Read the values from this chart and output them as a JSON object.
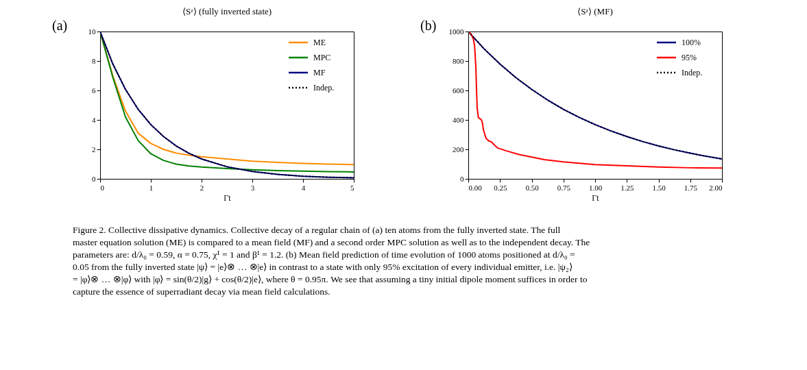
{
  "chart_data": [
    {
      "type": "line",
      "title": "⟨Sᶻ⟩ (fully inverted state)",
      "xlabel": "Γt",
      "xlim": [
        0,
        5
      ],
      "ylim": [
        0,
        10
      ],
      "xticks": [
        0,
        1,
        2,
        3,
        4,
        5
      ],
      "yticks": [
        0,
        2,
        4,
        6,
        8,
        10
      ],
      "grid": false,
      "legend": "top right",
      "line_style": "solid",
      "marker": "none",
      "annotations": [
        "(a)",
        "Figure 2. Collective dissipative dynamics. Collective decay of a regular chain of (a) ten atoms from the fully inverted state. The full master equation solution (ME) is compared to a mean field (MF) and a second order MPC solution as well as to the independent decay. The parameters are: d/λ₀ = 0.59, α = 0.75, χ¹ = 1 and β¹ = 1.2. (b) Mean field prediction of time evolution of 1000 atoms positioned at d/λ₀ = 0.05 from the fully inverted state |ψ⟩ = |e⟩⊗ … ⊗|e⟩ in contrast to a state with only 95% excitation of every individual emitter, i.e. |ψ₂⟩ = |φ⟩⊗ … ⊗|φ⟩ with |φ⟩ = sin(θ/2)|g⟩ + cos(θ/2)|e⟩, where θ = 0.95π. We see that assuming a tiny initial dipole moment suffices in order to capture the essence of superradiant decay via mean field calculations."
      ],
      "x": [
        0,
        0.25,
        0.5,
        0.75,
        1,
        1.25,
        1.5,
        1.75,
        2,
        2.5,
        3,
        3.5,
        4,
        4.5,
        5
      ],
      "series": [
        {
          "name": "ME",
          "color": "#ff8c00",
          "values": [
            10,
            7.0,
            4.6,
            3.1,
            2.4,
            2.0,
            1.75,
            1.6,
            1.5,
            1.35,
            1.2,
            1.12,
            1.05,
            1.0,
            0.97
          ]
        },
        {
          "name": "MPC",
          "color": "#008000",
          "values": [
            10,
            6.9,
            4.2,
            2.6,
            1.7,
            1.25,
            1.0,
            0.87,
            0.8,
            0.7,
            0.62,
            0.56,
            0.52,
            0.49,
            0.47
          ]
        },
        {
          "name": "MF",
          "color": "#000080",
          "values": [
            10,
            7.8,
            6.07,
            4.72,
            3.68,
            2.87,
            2.23,
            1.74,
            1.35,
            0.82,
            0.5,
            0.3,
            0.18,
            0.11,
            0.07
          ]
        },
        {
          "name": "Indep.",
          "color": "#000000",
          "line_style": "dotted",
          "values": [
            10,
            7.8,
            6.07,
            4.72,
            3.68,
            2.87,
            2.23,
            1.74,
            1.35,
            0.82,
            0.5,
            0.3,
            0.18,
            0.11,
            0.07
          ]
        }
      ]
    },
    {
      "type": "line",
      "title": "⟨Sᶻ⟩ (MF)",
      "xlabel": "Γt",
      "xlim": [
        0,
        2
      ],
      "ylim": [
        0,
        1000
      ],
      "xticks": [
        {
          "value": 0,
          "label": "0.00"
        },
        {
          "value": 0.25,
          "label": "0.25"
        },
        {
          "value": 0.5,
          "label": "0.50"
        },
        {
          "value": 0.75,
          "label": "0.75"
        },
        {
          "value": 1,
          "label": "1.00"
        },
        {
          "value": 1.25,
          "label": "1.25"
        },
        {
          "value": 1.5,
          "label": "1.50"
        },
        {
          "value": 1.75,
          "label": "1.75"
        },
        {
          "value": 2,
          "label": "2.00"
        }
      ],
      "yticks": [
        0,
        200,
        400,
        600,
        800,
        {
          "value": 1000,
          "label": "1000"
        }
      ],
      "grid": false,
      "legend": "top right",
      "line_style": "solid",
      "marker": "none",
      "annotations": [
        "(b)"
      ],
      "series": [
        {
          "name": "100%",
          "color": "#000080",
          "x": [
            0,
            0.125,
            0.25,
            0.375,
            0.5,
            0.625,
            0.75,
            0.875,
            1,
            1.125,
            1.25,
            1.375,
            1.5,
            1.625,
            1.75,
            1.875,
            2
          ],
          "values": [
            1000,
            882,
            779,
            687,
            607,
            535,
            472,
            417,
            368,
            325,
            287,
            253,
            223,
            197,
            174,
            153,
            135
          ]
        },
        {
          "name": "95%",
          "color": "#ff0000",
          "x": [
            0,
            0.02,
            0.04,
            0.05,
            0.06,
            0.065,
            0.07,
            0.08,
            0.09,
            0.1,
            0.11,
            0.12,
            0.14,
            0.16,
            0.18,
            0.2,
            0.23,
            0.3,
            0.4,
            0.5,
            0.6,
            0.75,
            1.0,
            1.25,
            1.5,
            1.75,
            2
          ],
          "values": [
            1000,
            985,
            950,
            900,
            750,
            600,
            480,
            415,
            408,
            405,
            385,
            330,
            275,
            258,
            252,
            235,
            210,
            190,
            165,
            148,
            130,
            115,
            97,
            88,
            80,
            75,
            73
          ]
        },
        {
          "name": "Indep.",
          "color": "#000000",
          "line_style": "dotted",
          "x": [
            0,
            0.125,
            0.25,
            0.375,
            0.5,
            0.625,
            0.75,
            0.875,
            1,
            1.125,
            1.25,
            1.375,
            1.5,
            1.625,
            1.75,
            1.875,
            2
          ],
          "values": [
            1000,
            882,
            779,
            687,
            607,
            535,
            472,
            417,
            368,
            325,
            287,
            253,
            223,
            197,
            174,
            153,
            135
          ]
        }
      ]
    }
  ]
}
